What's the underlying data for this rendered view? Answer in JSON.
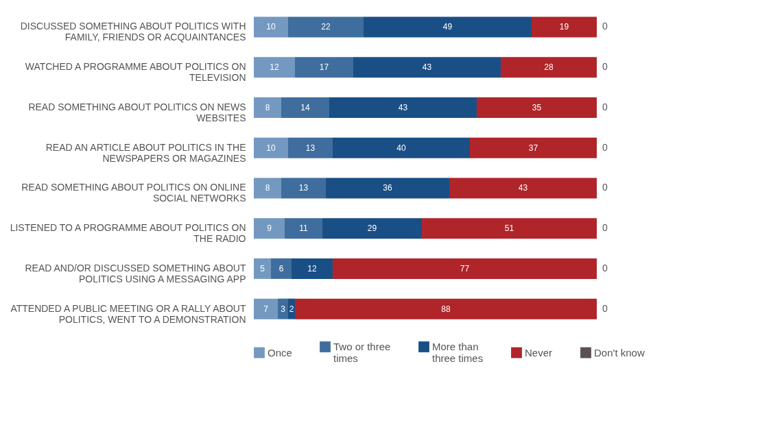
{
  "chart_data": {
    "type": "bar",
    "orientation": "horizontal",
    "stacked": true,
    "data_labels": true,
    "legend": "bottom",
    "categories": [
      "DISCUSSED SOMETHING ABOUT POLITICS WITH FAMILY, FRIENDS OR ACQUAINTANCES",
      "WATCHED A PROGRAMME ABOUT POLITICS ON TELEVISION",
      "READ SOMETHING ABOUT POLITICS ON NEWS WEBSITES",
      "READ AN ARTICLE ABOUT POLITICS IN THE NEWSPAPERS OR MAGAZINES",
      "READ SOMETHING ABOUT POLITICS ON ONLINE SOCIAL NETWORKS",
      "LISTENED TO A PROGRAMME ABOUT POLITICS ON THE RADIO",
      "READ AND/OR DISCUSSED SOMETHING ABOUT POLITICS USING A MESSAGING APP",
      "ATTENDED A PUBLIC MEETING OR A RALLY ABOUT POLITICS, WENT TO A DEMONSTRATION"
    ],
    "series": [
      {
        "name": "Once",
        "color": "#7399c0",
        "values": [
          10,
          12,
          8,
          10,
          8,
          9,
          5,
          7
        ]
      },
      {
        "name": "Two or three times",
        "color": "#3f6e9e",
        "values": [
          22,
          17,
          14,
          13,
          13,
          11,
          6,
          3
        ]
      },
      {
        "name": "More than three times",
        "color": "#1a4f86",
        "values": [
          49,
          43,
          43,
          40,
          36,
          29,
          12,
          2
        ]
      },
      {
        "name": "Never",
        "color": "#b0252a",
        "values": [
          19,
          28,
          35,
          37,
          43,
          51,
          77,
          88
        ]
      },
      {
        "name": "Don't know",
        "color": "#5a5055",
        "values": [
          0,
          0,
          0,
          0,
          0,
          0,
          0,
          0
        ]
      }
    ]
  }
}
